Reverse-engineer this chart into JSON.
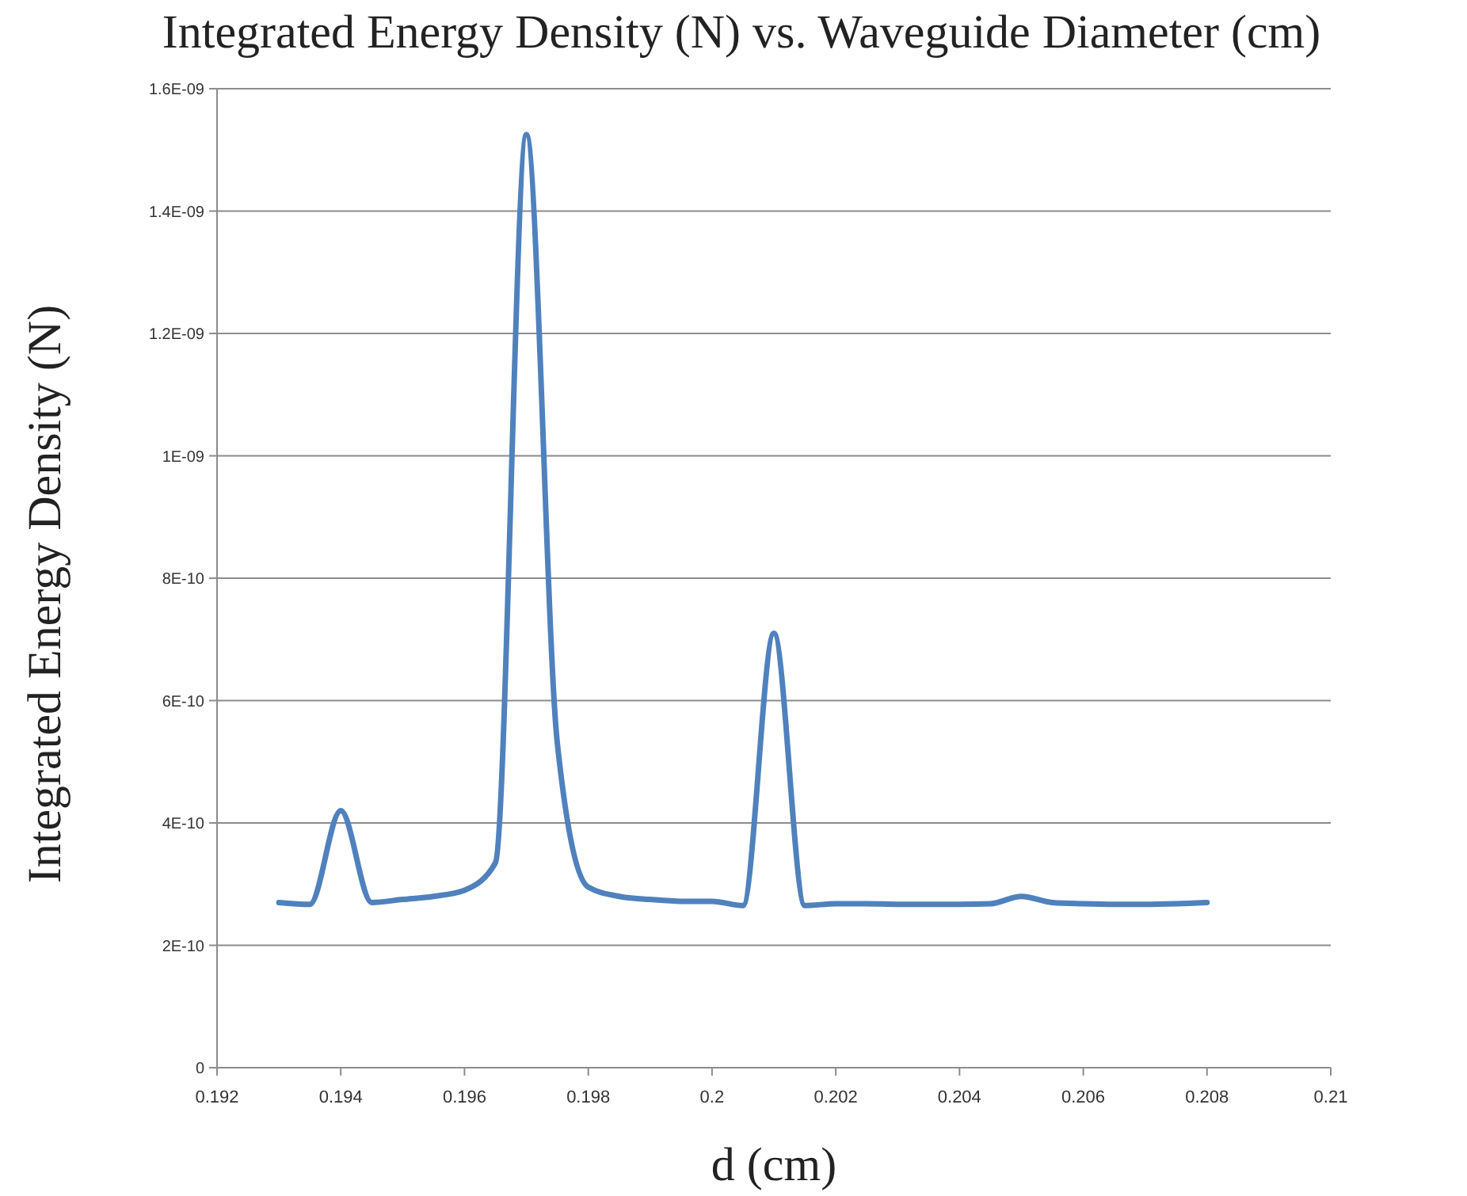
{
  "chart_data": {
    "type": "line",
    "title": "Integrated Energy Density (N) vs. Waveguide Diameter (cm)",
    "xlabel": "d (cm)",
    "ylabel": "Integrated Energy Density (N)",
    "x": [
      0.193,
      0.1935,
      0.194,
      0.1945,
      0.195,
      0.1955,
      0.196,
      0.1965,
      0.197,
      0.1975,
      0.198,
      0.1985,
      0.199,
      0.1995,
      0.2,
      0.2005,
      0.201,
      0.2015,
      0.202,
      0.2025,
      0.203,
      0.2035,
      0.204,
      0.2045,
      0.205,
      0.2055,
      0.206,
      0.2065,
      0.207,
      0.2075,
      0.208
    ],
    "series": [
      {
        "color": "#4f81bd",
        "values": [
          2.7e-10,
          2.67e-10,
          4.2e-10,
          2.7e-10,
          2.75e-10,
          2.8e-10,
          2.9e-10,
          3.35e-10,
          1.525e-09,
          5.3e-10,
          2.95e-10,
          2.8e-10,
          2.75e-10,
          2.72e-10,
          2.72e-10,
          2.65e-10,
          7.1e-10,
          2.65e-10,
          2.68e-10,
          2.68e-10,
          2.67e-10,
          2.67e-10,
          2.67e-10,
          2.68e-10,
          2.8e-10,
          2.7e-10,
          2.68e-10,
          2.67e-10,
          2.67e-10,
          2.68e-10,
          2.7e-10
        ]
      }
    ],
    "xlim": [
      0.192,
      0.21
    ],
    "xticks": [
      0.192,
      0.194,
      0.196,
      0.198,
      0.2,
      0.202,
      0.204,
      0.206,
      0.208,
      0.21
    ],
    "ylim": [
      0,
      1.6e-09
    ],
    "yticks": [
      0,
      {
        "value": 2e-10,
        "label": "2E-10"
      },
      {
        "value": 4e-10,
        "label": "4E-10"
      },
      {
        "value": 6e-10,
        "label": "6E-10"
      },
      {
        "value": 8e-10,
        "label": "8E-10"
      },
      {
        "value": 1e-09,
        "label": "1E-09"
      },
      {
        "value": 1.2e-09,
        "label": "1.2E-09"
      },
      {
        "value": 1.4e-09,
        "label": "1.4E-09"
      },
      {
        "value": 1.6e-09,
        "label": "1.6E-09"
      }
    ],
    "grid": "y",
    "marker": "none",
    "line_style": "solid"
  }
}
